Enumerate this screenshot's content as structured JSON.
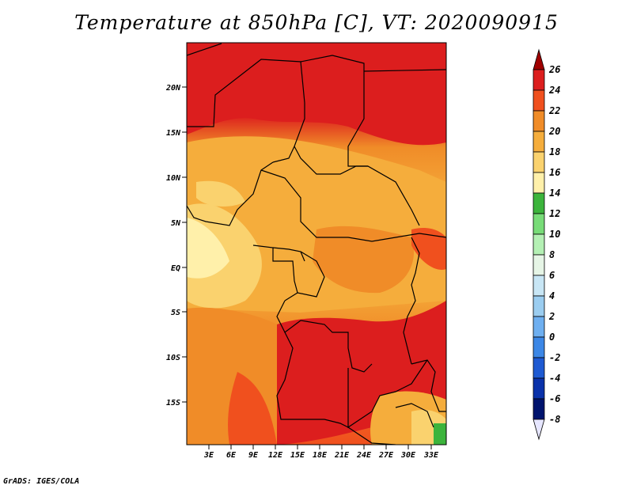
{
  "title": "Temperature at 850hPa [C], VT: 2020090915",
  "credit": "GrADS: IGES/COLA",
  "map": {
    "lat_labels": [
      "20N",
      "15N",
      "10N",
      "5N",
      "EQ",
      "5S",
      "10S",
      "15S"
    ],
    "lon_labels": [
      "3E",
      "6E",
      "9E",
      "12E",
      "15E",
      "18E",
      "21E",
      "24E",
      "27E",
      "30E",
      "33E"
    ]
  },
  "colorbar": {
    "labels": [
      "26",
      "24",
      "22",
      "20",
      "18",
      "16",
      "14",
      "12",
      "10",
      "8",
      "6",
      "4",
      "2",
      "0",
      "-2",
      "-4",
      "-6",
      "-8"
    ],
    "colors": [
      "#a00000",
      "#dc1e1e",
      "#f0501e",
      "#f08c28",
      "#f5ad3c",
      "#fad26e",
      "#fff0aa",
      "#3cb43c",
      "#78dc78",
      "#b4f0b4",
      "#e6f5e6",
      "#c8e6f5",
      "#9bcdf0",
      "#6eaff0",
      "#3c87e6",
      "#1e5ad2",
      "#0a32aa",
      "#00146e",
      "#e6e6ff"
    ]
  }
}
